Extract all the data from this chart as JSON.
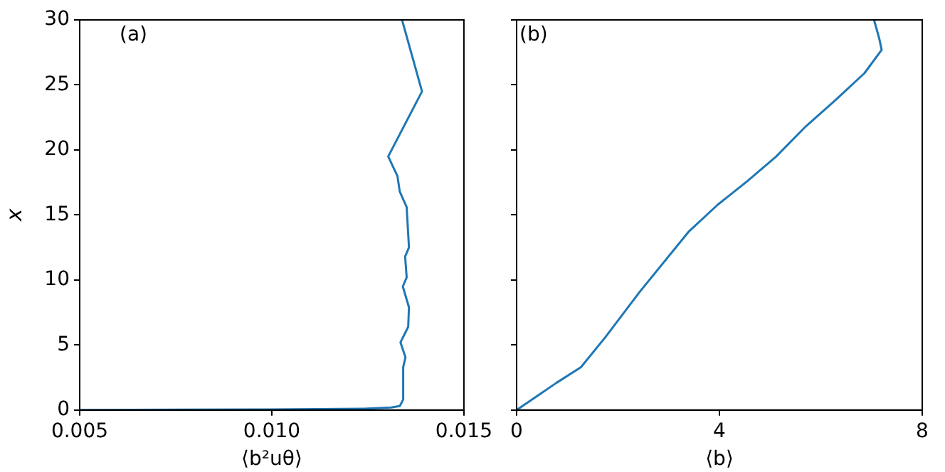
{
  "chart_data": [
    {
      "type": "line",
      "xlabel": "⟨b²uθ⟩",
      "ylabel": "x",
      "annotations": [
        "(a)"
      ],
      "xlim": [
        0.005,
        0.015
      ],
      "xticks": [
        0.005,
        {
          "value": 0.01,
          "label": "0.010"
        },
        0.015
      ],
      "ylim": [
        0,
        30
      ],
      "yticks": [
        0,
        5,
        10,
        15,
        20,
        25,
        30
      ],
      "grid": false,
      "legend": false,
      "series": [
        {
          "color": "#1f77b4",
          "x": [
            0.005,
            0.01,
            0.0124,
            0.0131,
            0.01333,
            0.01342,
            0.01342,
            0.01348,
            0.01335,
            0.01355,
            0.01357,
            0.01341,
            0.01351,
            0.01347,
            0.01357,
            0.01351,
            0.01333,
            0.01327,
            0.01303,
            0.01391,
            0.01339
          ],
          "values": [
            0,
            0.05,
            0.1,
            0.2,
            0.3,
            0.8,
            3.3,
            4.05,
            5.2,
            6.4,
            7.9,
            9.5,
            10.2,
            11.8,
            12.5,
            15.6,
            16.8,
            18.0,
            19.5,
            24.5,
            30
          ]
        }
      ]
    },
    {
      "type": "line",
      "xlabel": "⟨b⟩",
      "annotations": [
        "(b)"
      ],
      "tick_labels": "x",
      "xlim": [
        0,
        8
      ],
      "xticks": [
        0,
        4,
        8
      ],
      "ylim": [
        0,
        30
      ],
      "yticks": [
        0,
        5,
        10,
        15,
        20,
        25,
        30
      ],
      "grid": false,
      "legend": false,
      "series": [
        {
          "color": "#1f77b4",
          "x": [
            0,
            0.79,
            1.27,
            1.75,
            2.43,
            3.39,
            3.97,
            4.55,
            5.12,
            5.7,
            6.28,
            6.86,
            7.2,
            7.15,
            7.05
          ],
          "values": [
            0,
            2.1,
            3.3,
            5.6,
            9.1,
            13.7,
            15.8,
            17.6,
            19.5,
            21.8,
            23.8,
            25.9,
            27.7,
            28.6,
            30
          ]
        }
      ]
    }
  ]
}
